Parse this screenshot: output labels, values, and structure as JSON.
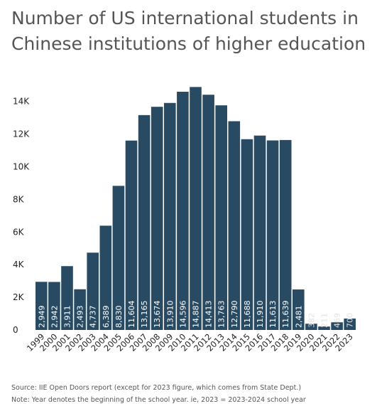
{
  "title": "Number of US international students in Chinese institutions of higher education",
  "footer": {
    "source": "Source: IIE Open Doors report (except for 2023 figure, which comes from State Dept.)",
    "note": "Note: Year denotes the beginning of the school year. ie, 2023 = 2023-2024 school year"
  },
  "colors": {
    "bar": "#284b63",
    "label_on_bar": "#ffffff",
    "label_small": "#e3e3e3",
    "axis_text": "#222222"
  },
  "chart_data": {
    "type": "bar",
    "title": "Number of US international students in Chinese institutions of higher education",
    "xlabel": "",
    "ylabel": "",
    "ylim": [
      0,
      15000
    ],
    "yticks": [
      0,
      2000,
      4000,
      6000,
      8000,
      10000,
      12000,
      14000
    ],
    "ytick_labels": [
      "0",
      "2K",
      "4K",
      "6K",
      "8K",
      "10K",
      "12K",
      "14K"
    ],
    "grid": false,
    "categories": [
      "1999",
      "2000",
      "2001",
      "2002",
      "2003",
      "2004",
      "2005",
      "2006",
      "2007",
      "2008",
      "2009",
      "2010",
      "2011",
      "2012",
      "2013",
      "2014",
      "2015",
      "2016",
      "2017",
      "2018",
      "2019",
      "2020",
      "2021",
      "2022",
      "2023"
    ],
    "values": [
      2949,
      2942,
      3911,
      2493,
      4737,
      6389,
      8830,
      11604,
      13165,
      13674,
      13910,
      14596,
      14887,
      14413,
      13763,
      12790,
      11688,
      11910,
      11613,
      11639,
      2481,
      382,
      211,
      469,
      700
    ],
    "value_labels": [
      "2,949",
      "2,942",
      "3,911",
      "2,493",
      "4,737",
      "6,389",
      "8,830",
      "11,604",
      "13,165",
      "13,674",
      "13,910",
      "14,596",
      "14,887",
      "14,413",
      "13,763",
      "12,790",
      "11,688",
      "11,910",
      "11,613",
      "11,639",
      "2,481",
      "382",
      "211",
      "469",
      "700"
    ]
  }
}
